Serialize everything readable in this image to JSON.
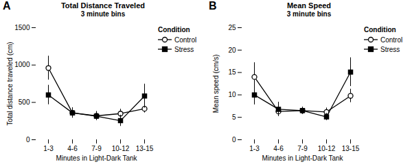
{
  "chart_data": [
    {
      "type": "line",
      "title": "Total Distance Traveled",
      "subtitle": "3 minute bins",
      "annotations": [
        "A"
      ],
      "xlabel": "Minutes in Light-Dark Tank",
      "ylabel": "Total distance traveled (cm)",
      "categories": [
        "1-3",
        "4-6",
        "7-9",
        "10-12",
        "13-15"
      ],
      "series": [
        {
          "name": "Control",
          "color": "#000000",
          "marker": "open-circle",
          "line_style": "solid",
          "values": [
            960,
            360,
            320,
            350,
            415
          ],
          "errors": [
            160,
            60,
            60,
            60,
            55
          ]
        },
        {
          "name": "Stress",
          "color": "#000000",
          "marker": "square",
          "line_style": "solid",
          "values": [
            600,
            360,
            315,
            255,
            585
          ],
          "errors": [
            130,
            70,
            55,
            75,
            160
          ]
        }
      ],
      "ylim": [
        0,
        1500
      ],
      "yticks": [
        0,
        500,
        1000,
        1500
      ],
      "grid": false,
      "legend": "upper right",
      "legend_title": "Condition"
    },
    {
      "type": "line",
      "title": "Mean Speed",
      "subtitle": "3 minute bins",
      "annotations": [
        "B"
      ],
      "xlabel": "Minutes in Light-Dark Tank",
      "ylabel": "Mean speed (cm/s)",
      "categories": [
        "1-3",
        "4-6",
        "7-9",
        "10-12",
        "13-15"
      ],
      "series": [
        {
          "name": "Control",
          "color": "#000000",
          "marker": "open-circle",
          "line_style": "solid",
          "values": [
            14.0,
            6.3,
            6.5,
            6.2,
            9.8
          ],
          "errors": [
            3.2,
            0.9,
            0.8,
            0.9,
            1.5
          ]
        },
        {
          "name": "Stress",
          "color": "#000000",
          "marker": "square",
          "line_style": "solid",
          "values": [
            10.0,
            6.8,
            6.5,
            5.1,
            15.1
          ],
          "errors": [
            2.2,
            1.6,
            0.8,
            0.8,
            3.2
          ]
        }
      ],
      "ylim": [
        0,
        25
      ],
      "yticks": [
        0,
        5,
        10,
        15,
        20,
        25
      ],
      "grid": false,
      "legend": "upper right",
      "legend_title": "Condition"
    }
  ]
}
